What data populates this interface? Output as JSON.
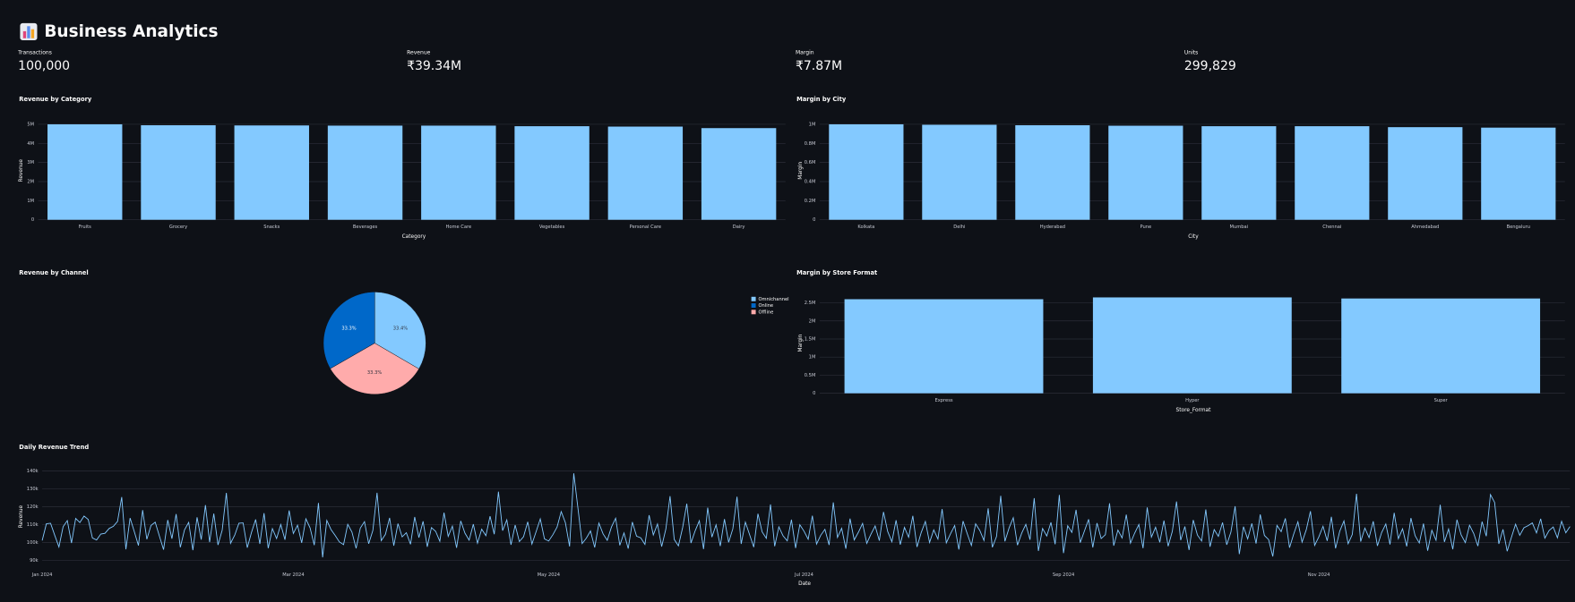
{
  "header": {
    "title": "Business Analytics"
  },
  "metrics": [
    {
      "label": "Transactions",
      "value": "100,000"
    },
    {
      "label": "Revenue",
      "value": "₹39.34M"
    },
    {
      "label": "Margin",
      "value": "₹7.87M"
    },
    {
      "label": "Units",
      "value": "299,829"
    }
  ],
  "chart_data": [
    {
      "type": "bar",
      "title": "Revenue by Category",
      "x_label": "Category",
      "y_label": "Revenue",
      "categories": [
        "Fruits",
        "Grocery",
        "Snacks",
        "Beverages",
        "Home Care",
        "Vegetables",
        "Personal Care",
        "Dairy"
      ],
      "values": [
        5000000,
        4950000,
        4940000,
        4930000,
        4930000,
        4900000,
        4880000,
        4800000
      ],
      "color": "#83c9ff",
      "ylim": [
        0,
        5200000
      ],
      "yticks": [
        0,
        {
          "value": 1000000,
          "label": "1M"
        },
        {
          "value": 2000000,
          "label": "2M"
        },
        {
          "value": 3000000,
          "label": "3M"
        },
        {
          "value": 4000000,
          "label": "4M"
        },
        {
          "value": 5000000,
          "label": "5M"
        }
      ],
      "grid": true
    },
    {
      "type": "bar",
      "title": "Margin by City",
      "x_label": "City",
      "y_label": "Margin",
      "categories": [
        "Kolkata",
        "Delhi",
        "Hyderabad",
        "Pune",
        "Mumbai",
        "Chennai",
        "Ahmedabad",
        "Bengaluru"
      ],
      "values": [
        1000000,
        995000,
        990000,
        985000,
        980000,
        980000,
        970000,
        965000
      ],
      "color": "#83c9ff",
      "ylim": [
        0,
        1040000
      ],
      "yticks": [
        0,
        {
          "value": 200000,
          "label": "0.2M"
        },
        {
          "value": 400000,
          "label": "0.4M"
        },
        {
          "value": 600000,
          "label": "0.6M"
        },
        {
          "value": 800000,
          "label": "0.8M"
        },
        {
          "value": 1000000,
          "label": "1M"
        }
      ],
      "grid": true
    },
    {
      "type": "pie",
      "title": "Revenue by Channel",
      "categories": [
        "Omnichannel",
        "Online",
        "Offline"
      ],
      "values": [
        33.4,
        33.3,
        33.3
      ],
      "value_labels": [
        "33.4%",
        "33.3%",
        "33.3%"
      ],
      "colors": [
        "#83c9ff",
        "#0068c9",
        "#ffabab"
      ]
    },
    {
      "type": "bar",
      "title": "Margin by Store Format",
      "x_label": "Store_Format",
      "y_label": "Margin",
      "categories": [
        "Express",
        "Hyper",
        "Super"
      ],
      "values": [
        2600000,
        2650000,
        2620000
      ],
      "color": "#83c9ff",
      "ylim": [
        0,
        2800000
      ],
      "yticks": [
        0,
        {
          "value": 500000,
          "label": "0.5M"
        },
        {
          "value": 1000000,
          "label": "1M"
        },
        {
          "value": 1500000,
          "label": "1.5M"
        },
        {
          "value": 2000000,
          "label": "2M"
        },
        {
          "value": 2500000,
          "label": "2.5M"
        }
      ],
      "grid": true
    },
    {
      "type": "line",
      "title": "Daily Revenue Trend",
      "x_label": "Date",
      "y_label": "Revenue",
      "color": "#83c9ff",
      "xlim": [
        0,
        365
      ],
      "ylim": [
        86000,
        143000
      ],
      "xticks": [
        {
          "value": 0,
          "label": "Jan 2024"
        },
        {
          "value": 60,
          "label": "Mar 2024"
        },
        {
          "value": 121,
          "label": "May 2024"
        },
        {
          "value": 182,
          "label": "Jul 2024"
        },
        {
          "value": 244,
          "label": "Sep 2024"
        },
        {
          "value": 305,
          "label": "Nov 2024"
        }
      ],
      "yticks": [
        {
          "value": 90000,
          "label": "90k"
        },
        {
          "value": 100000,
          "label": "100k"
        },
        {
          "value": 110000,
          "label": "110k"
        },
        {
          "value": 120000,
          "label": "120k"
        },
        {
          "value": 130000,
          "label": "130k"
        },
        {
          "value": 140000,
          "label": "140k"
        }
      ],
      "grid": true,
      "values": [
        101200,
        110500,
        110800,
        104100,
        97600,
        108900,
        112300,
        99800,
        113500,
        111200,
        114800,
        112900,
        102600,
        101500,
        104800,
        105200,
        107900,
        109100,
        111800,
        125400,
        96300,
        113700,
        106200,
        98400,
        118100,
        101900,
        109600,
        111400,
        103700,
        96100,
        112600,
        102200,
        115900,
        97400,
        107100,
        111300,
        95800,
        114100,
        101700,
        120900,
        100300,
        116200,
        98700,
        106900,
        127700,
        99600,
        104200,
        110800,
        111000,
        97200,
        105700,
        112900,
        99300,
        116400,
        96900,
        107800,
        102300,
        110100,
        101600,
        117900,
        105100,
        109700,
        99900,
        113300,
        108200,
        98600,
        122100,
        91800,
        112400,
        107300,
        104000,
        100400,
        98900,
        110200,
        105900,
        96800,
        108100,
        111700,
        99400,
        106800,
        127800,
        101100,
        104600,
        113800,
        98300,
        110600,
        103200,
        105500,
        99100,
        114300,
        102800,
        111900,
        97700,
        108400,
        106300,
        100800,
        116700,
        103500,
        109200,
        97100,
        112100,
        105300,
        101400,
        110300,
        99700,
        107500,
        103900,
        114700,
        104700,
        128400,
        106700,
        112700,
        98800,
        109800,
        100600,
        103300,
        111600,
        99200,
        106100,
        113200,
        102100,
        100900,
        104400,
        108600,
        117300,
        111100,
        97900,
        138600,
        119200,
        99500,
        102500,
        106500,
        97300,
        110900,
        104900,
        101300,
        108700,
        113600,
        98500,
        105400,
        96700,
        111500,
        103600,
        102700,
        99000,
        115300,
        104300,
        110400,
        97800,
        107600,
        125900,
        101800,
        98200,
        108300,
        121700,
        99800,
        106600,
        112200,
        96400,
        119500,
        103100,
        109900,
        98100,
        113100,
        100200,
        107700,
        125600,
        99300,
        111400,
        104500,
        97500,
        116100,
        106000,
        102400,
        121300,
        98000,
        108800,
        103800,
        101000,
        112800,
        97000,
        110000,
        106400,
        101900,
        115000,
        99200,
        104100,
        107400,
        98700,
        122400,
        102900,
        108000,
        96600,
        113400,
        101500,
        105800,
        110700,
        99600,
        104700,
        109300,
        101100,
        117100,
        106200,
        100500,
        112500,
        98900,
        108500,
        103000,
        114900,
        97600,
        105600,
        111800,
        100100,
        107100,
        102000,
        118700,
        99900,
        104900,
        109500,
        96200,
        112000,
        105000,
        98400,
        110500,
        106800,
        101200,
        119100,
        97400,
        103400,
        126100,
        100700,
        108200,
        113900,
        98600,
        105200,
        110200,
        101600,
        124800,
        95400,
        107900,
        103700,
        111300,
        99100,
        126600,
        94200,
        109400,
        105700,
        118300,
        100000,
        106500,
        113000,
        97300,
        110900,
        102300,
        104400,
        121900,
        98300,
        107000,
        102600,
        115600,
        99700,
        105300,
        110100,
        96900,
        119600,
        103100,
        108600,
        100200,
        112300,
        98000,
        106300,
        122900,
        101400,
        109000,
        95900,
        112600,
        104200,
        100900,
        118500,
        97700,
        107300,
        103500,
        111200,
        98800,
        105900,
        120300,
        93600,
        108900,
        102100,
        110700,
        99500,
        115700,
        104000,
        101700,
        92300,
        109600,
        106100,
        113500,
        97200,
        104800,
        111600,
        100300,
        107200,
        117500,
        98500,
        103200,
        109100,
        101000,
        114400,
        96800,
        106400,
        112100,
        99400,
        104600,
        127200,
        100600,
        108100,
        102800,
        111900,
        98200,
        105600,
        110400,
        99000,
        116600,
        102200,
        107700,
        97900,
        113700,
        103900,
        99800,
        110600,
        95500,
        106900,
        101300,
        121100,
        100400,
        107600,
        96300,
        112800,
        104300,
        100000,
        109700,
        105100,
        98100,
        111700,
        103600,
        126800,
        122400,
        99300,
        107400,
        95200,
        102900,
        110300,
        104100,
        108300,
        109500,
        111000,
        105400,
        113300,
        102500,
        106700,
        108700,
        102700,
        111900,
        105500,
        109000
      ]
    }
  ]
}
